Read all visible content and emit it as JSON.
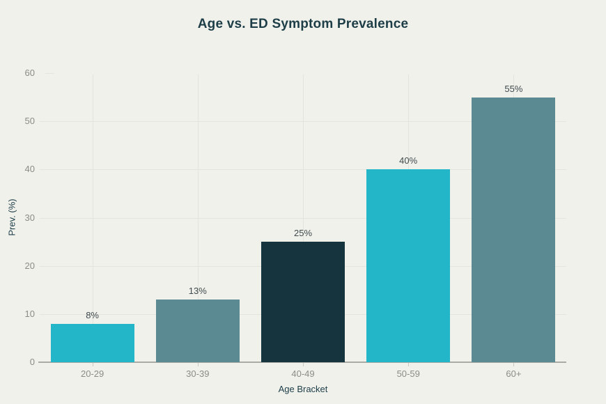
{
  "chart_data": {
    "type": "bar",
    "title": "Age vs. ED Symptom Prevalence",
    "xlabel": "Age Bracket",
    "ylabel": "Prev. (%)",
    "categories": [
      "20-29",
      "30-39",
      "40-49",
      "50-59",
      "60+"
    ],
    "values": [
      8,
      13,
      25,
      40,
      55
    ],
    "value_labels": [
      "8%",
      "13%",
      "25%",
      "40%",
      "55%"
    ],
    "ylim": [
      0,
      60
    ],
    "yticks": [
      0,
      10,
      20,
      30,
      40,
      50,
      60
    ],
    "grid": true,
    "legend": "none",
    "bar_colors": [
      "#23b6c9",
      "#5b8a93",
      "#16343e",
      "#23b6c9",
      "#5b8a93"
    ],
    "colors": {
      "background": "#f1f1ec",
      "cyan": "#23b6c9",
      "slate_teal": "#5b8a93",
      "dark_navy": "#16343e",
      "title_text": "#1d3d47",
      "tick_text": "#8c8c86",
      "gridline": "#e4e4df",
      "axis_line": "#ababa6",
      "value_label_text": "#3f4a4d"
    }
  }
}
